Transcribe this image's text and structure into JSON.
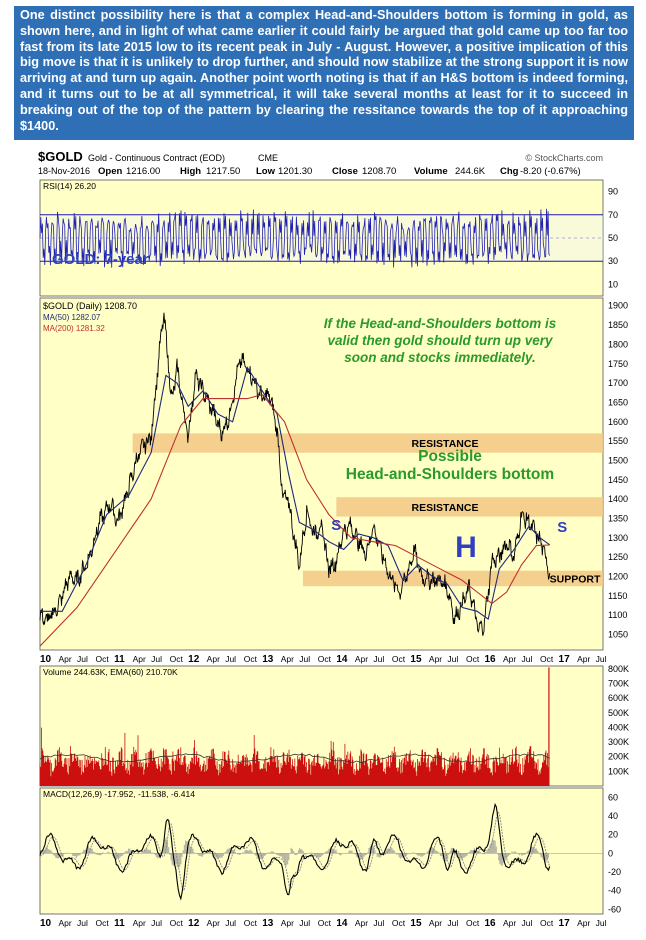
{
  "intro_text": "One distinct possibility here is that a complex Head-and-Shoulders bottom is forming in gold, as shown here, and in light of what came earlier it could fairly be argued that gold came up too far too fast from its late 2015 low to its recent peak in July - August. However, a positive implication of this big move is that it is unlikely to drop further, and should now stabilize at the strong support it is now arriving at and turn up again. Another point worth noting is that if an H&S bottom is indeed forming, and it turns out to be at all symmetrical, it will take several months at least for it to succeed in breaking out of the top of the pattern by clearing the ressitance towards the top of it approaching $1400.",
  "header": {
    "symbol": "$GOLD",
    "name": "Gold - Continuous Contract (EOD)",
    "exchange": "CME",
    "source": "© StockCharts.com",
    "date": "18-Nov-2016",
    "open_label": "Open",
    "open": "1216.00",
    "high_label": "High",
    "high": "1217.50",
    "low_label": "Low",
    "low": "1201.30",
    "close_label": "Close",
    "close": "1208.70",
    "volume_label": "Volume",
    "volume": "244.6K",
    "chg_label": "Chg",
    "chg": "-8.20 (-0.67%)"
  },
  "colors": {
    "background": "#ffffc6",
    "intro_bg": "#2e6fb5",
    "price": "#000000",
    "ma50": "#1e2a7a",
    "ma200": "#c03030",
    "band": "#f2c784",
    "rsi_line": "#2020b0",
    "annotation_green": "#2a9a2a",
    "annotation_blue": "#3040c0",
    "volume": "#cc1010",
    "macd_signal": "#888888"
  },
  "chart_data": [
    {
      "type": "line",
      "panel": "rsi",
      "legend": "RSI(14) 26.20",
      "y_ticks": [
        10,
        30,
        50,
        70,
        90
      ],
      "ylim": [
        0,
        100
      ],
      "reference_lines": [
        30,
        70
      ]
    },
    {
      "type": "line",
      "panel": "price",
      "title": "GOLD: 7-year",
      "x_ticks": [
        "10",
        "Apr",
        "Jul",
        "Oct",
        "11",
        "Apr",
        "Jul",
        "Oct",
        "12",
        "Apr",
        "Jul",
        "Oct",
        "13",
        "Apr",
        "Jul",
        "Oct",
        "14",
        "Apr",
        "Jul",
        "Oct",
        "15",
        "Apr",
        "Jul",
        "Oct",
        "16",
        "Apr",
        "Jul",
        "Oct",
        "17",
        "Apr",
        "Jul"
      ],
      "y_ticks": [
        1050,
        1100,
        1150,
        1200,
        1250,
        1300,
        1350,
        1400,
        1450,
        1500,
        1550,
        1600,
        1650,
        1700,
        1750,
        1800,
        1850,
        1900
      ],
      "ylim": [
        1010,
        1920
      ],
      "xlim": [
        2010.0,
        2017.6
      ],
      "legend": [
        {
          "name": "$GOLD (Daily) 1208.70",
          "color": "#000000"
        },
        {
          "name": "MA(50) 1282.07",
          "color": "#1e2a7a"
        },
        {
          "name": "MA(200) 1281.32",
          "color": "#c03030"
        }
      ],
      "series": [
        {
          "name": "$GOLD (Daily)",
          "x": [
            2010.0,
            2010.1,
            2010.25,
            2010.4,
            2010.5,
            2010.65,
            2010.8,
            2010.95,
            2011.05,
            2011.2,
            2011.3,
            2011.4,
            2011.5,
            2011.6,
            2011.67,
            2011.72,
            2011.78,
            2011.85,
            2011.93,
            2012.0,
            2012.1,
            2012.2,
            2012.35,
            2012.45,
            2012.55,
            2012.7,
            2012.8,
            2012.9,
            2013.0,
            2013.1,
            2013.2,
            2013.28,
            2013.35,
            2013.45,
            2013.5,
            2013.6,
            2013.7,
            2013.8,
            2013.9,
            2014.0,
            2014.1,
            2014.2,
            2014.3,
            2014.4,
            2014.5,
            2014.6,
            2014.7,
            2014.85,
            2014.95,
            2015.05,
            2015.15,
            2015.3,
            2015.4,
            2015.5,
            2015.6,
            2015.7,
            2015.8,
            2015.92,
            2016.0,
            2016.1,
            2016.2,
            2016.3,
            2016.4,
            2016.5,
            2016.6,
            2016.7,
            2016.8,
            2016.88
          ],
          "values": [
            1100,
            1085,
            1125,
            1200,
            1190,
            1240,
            1340,
            1390,
            1340,
            1430,
            1500,
            1540,
            1560,
            1760,
            1880,
            1780,
            1650,
            1740,
            1640,
            1560,
            1720,
            1680,
            1620,
            1570,
            1610,
            1760,
            1740,
            1700,
            1660,
            1670,
            1580,
            1400,
            1400,
            1280,
            1230,
            1370,
            1310,
            1330,
            1220,
            1240,
            1320,
            1330,
            1290,
            1260,
            1330,
            1270,
            1210,
            1160,
            1200,
            1270,
            1200,
            1190,
            1190,
            1170,
            1090,
            1130,
            1170,
            1060,
            1080,
            1240,
            1250,
            1290,
            1250,
            1360,
            1340,
            1310,
            1270,
            1208.7
          ]
        },
        {
          "name": "MA(50)",
          "x": [
            2010.0,
            2010.3,
            2010.6,
            2010.9,
            2011.2,
            2011.5,
            2011.7,
            2011.85,
            2012.0,
            2012.2,
            2012.4,
            2012.6,
            2012.8,
            2013.0,
            2013.2,
            2013.35,
            2013.5,
            2013.7,
            2013.9,
            2014.1,
            2014.3,
            2014.5,
            2014.7,
            2014.9,
            2015.1,
            2015.3,
            2015.5,
            2015.7,
            2015.9,
            2016.05,
            2016.2,
            2016.4,
            2016.6,
            2016.75,
            2016.88
          ],
          "values": [
            1110,
            1110,
            1220,
            1360,
            1410,
            1520,
            1720,
            1700,
            1640,
            1680,
            1620,
            1600,
            1740,
            1680,
            1620,
            1470,
            1340,
            1320,
            1290,
            1270,
            1310,
            1300,
            1280,
            1190,
            1230,
            1200,
            1180,
            1120,
            1110,
            1090,
            1220,
            1270,
            1330,
            1300,
            1282.07
          ]
        },
        {
          "name": "MA(200)",
          "x": [
            2010.0,
            2010.5,
            2011.0,
            2011.5,
            2011.9,
            2012.2,
            2012.5,
            2012.8,
            2013.0,
            2013.3,
            2013.6,
            2013.9,
            2014.2,
            2014.5,
            2014.8,
            2015.1,
            2015.4,
            2015.7,
            2015.9,
            2016.1,
            2016.3,
            2016.5,
            2016.7,
            2016.88
          ],
          "values": [
            1020,
            1120,
            1260,
            1400,
            1590,
            1660,
            1660,
            1660,
            1670,
            1600,
            1450,
            1360,
            1300,
            1290,
            1280,
            1250,
            1220,
            1190,
            1160,
            1130,
            1160,
            1230,
            1280,
            1281.32
          ]
        }
      ],
      "bands": [
        {
          "label": "RESISTANCE",
          "low": 1520,
          "high": 1570
        },
        {
          "label": "RESISTANCE",
          "low": 1355,
          "high": 1405
        },
        {
          "label": "SUPPORT",
          "low": 1175,
          "high": 1215
        }
      ],
      "annotations": [
        {
          "text_lines": [
            "If the Head-and-Shoulders bottom is",
            "valid then gold should turn up very",
            "soon and stocks immediately."
          ]
        },
        {
          "text_lines": [
            "Possible",
            "Head-and-Shoulders bottom"
          ]
        },
        {
          "text": "S",
          "x": 2014.0,
          "y": 1320
        },
        {
          "text": "H",
          "x": 2015.75,
          "y": 1250
        },
        {
          "text": "S",
          "x": 2017.05,
          "y": 1315
        }
      ]
    },
    {
      "type": "bar",
      "panel": "volume",
      "legend": "Volume 244.63K, EMA(60) 210.70K",
      "y_ticks": [
        "100K",
        "200K",
        "300K",
        "400K",
        "500K",
        "600K",
        "700K",
        "800K"
      ],
      "ylim": [
        0,
        820
      ]
    },
    {
      "type": "line",
      "panel": "macd",
      "legend": "MACD(12,26,9) -17.952, -11.538, -6.414",
      "y_ticks": [
        -60,
        -40,
        -20,
        0,
        20,
        40,
        60
      ],
      "ylim": [
        -65,
        70
      ]
    }
  ]
}
